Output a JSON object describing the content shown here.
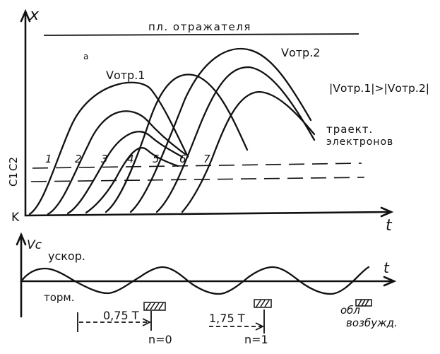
{
  "top_plot": {
    "y_axis_label": "x",
    "x_axis_label": "t",
    "reflector_plane_label": "пл. отражателя",
    "v_label_1": "Vотр.1",
    "v_label_2": "Vотр.2",
    "inequality": "|Vотр.1|>|Vотр.2|",
    "trajectories_label_line1": "траект.",
    "trajectories_label_line2": "электронов",
    "k_label": "K",
    "c1_label": "C1",
    "c2_label": "C2",
    "trajectory_numbers": [
      "1",
      "2",
      "3",
      "4",
      "5",
      "6",
      "7"
    ]
  },
  "bottom_plot": {
    "y_axis_label": "Vс",
    "x_axis_label": "t",
    "accel_label": "ускор.",
    "decel_label": "торм.",
    "interval_0_label": "0,75 T",
    "interval_1_label": "1,75 T",
    "n0_label": "n=0",
    "n1_label": "n=1",
    "excitation_label_line1": "обл",
    "excitation_label_line2": "возбужд."
  }
}
